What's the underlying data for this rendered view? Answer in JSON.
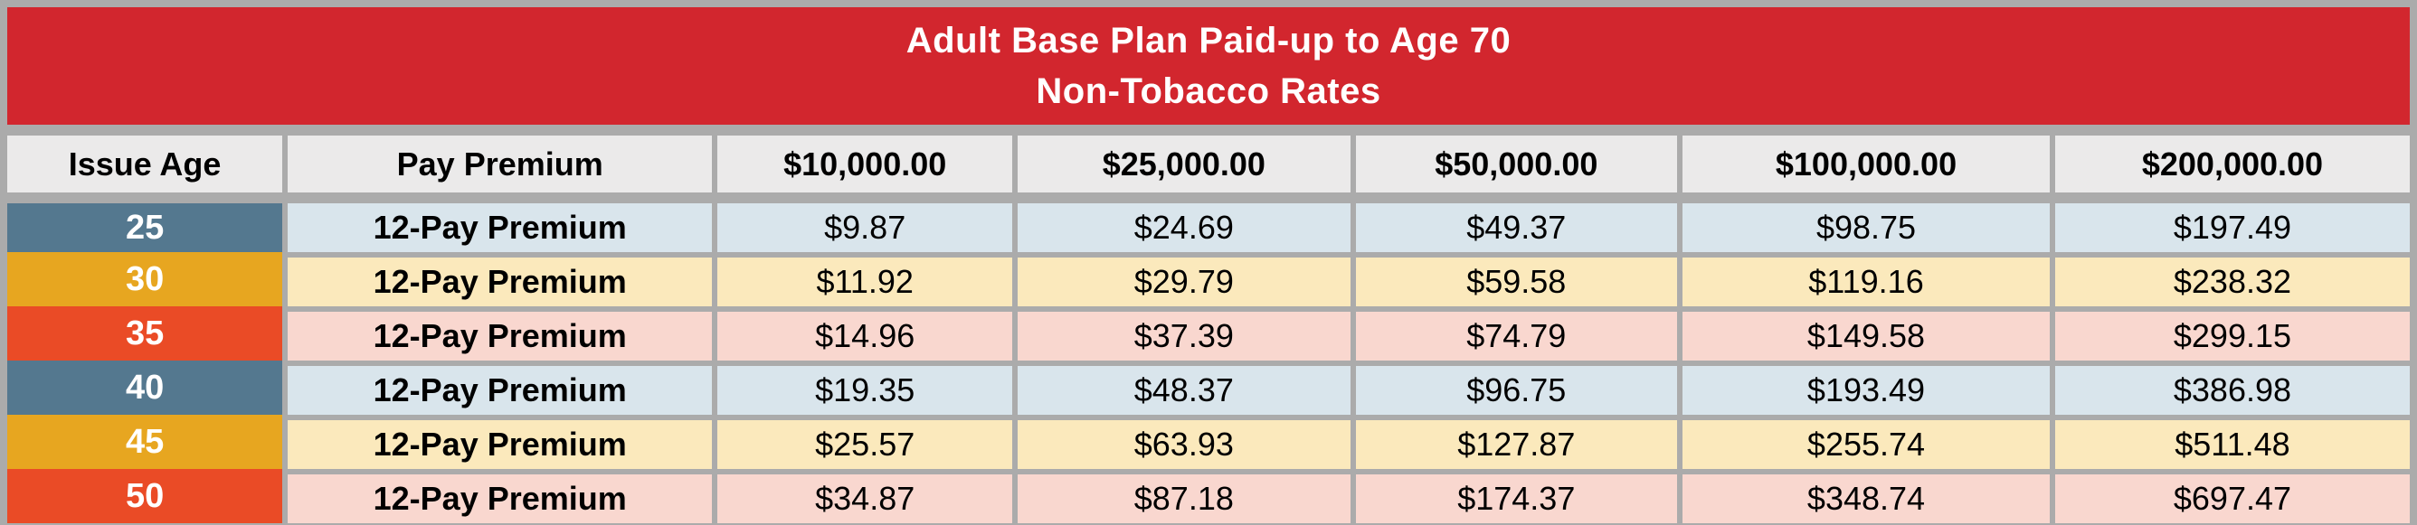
{
  "title": {
    "line1": "Adult Base Plan Paid-up to Age 70",
    "line2": "Non-Tobacco Rates"
  },
  "columns": [
    "Issue Age",
    "Pay Premium",
    "$10,000.00",
    "$25,000.00",
    "$50,000.00",
    "$100,000.00",
    "$200,000.00"
  ],
  "rows": [
    {
      "age": "25",
      "premium_type": "12-Pay Premium",
      "values": [
        "$9.87",
        "$24.69",
        "$49.37",
        "$98.75",
        "$197.49"
      ]
    },
    {
      "age": "30",
      "premium_type": "12-Pay Premium",
      "values": [
        "$11.92",
        "$29.79",
        "$59.58",
        "$119.16",
        "$238.32"
      ]
    },
    {
      "age": "35",
      "premium_type": "12-Pay Premium",
      "values": [
        "$14.96",
        "$37.39",
        "$74.79",
        "$149.58",
        "$299.15"
      ]
    },
    {
      "age": "40",
      "premium_type": "12-Pay Premium",
      "values": [
        "$19.35",
        "$48.37",
        "$96.75",
        "$193.49",
        "$386.98"
      ]
    },
    {
      "age": "45",
      "premium_type": "12-Pay Premium",
      "values": [
        "$25.57",
        "$63.93",
        "$127.87",
        "$255.74",
        "$511.48"
      ]
    },
    {
      "age": "50",
      "premium_type": "12-Pay Premium",
      "values": [
        "$34.87",
        "$87.18",
        "$174.37",
        "$348.74",
        "$697.47"
      ]
    }
  ],
  "colors": {
    "banner_red": "#D2262E",
    "gridline_silver": "#ABABAB",
    "header_gray": "#EBEAEA",
    "age_blue": "#54788F",
    "age_amber": "#E7A620",
    "age_orange": "#EA4B26",
    "row_blue": "#D9E5EC",
    "row_amber": "#FBE9BC",
    "row_orange": "#F9D7CF"
  }
}
